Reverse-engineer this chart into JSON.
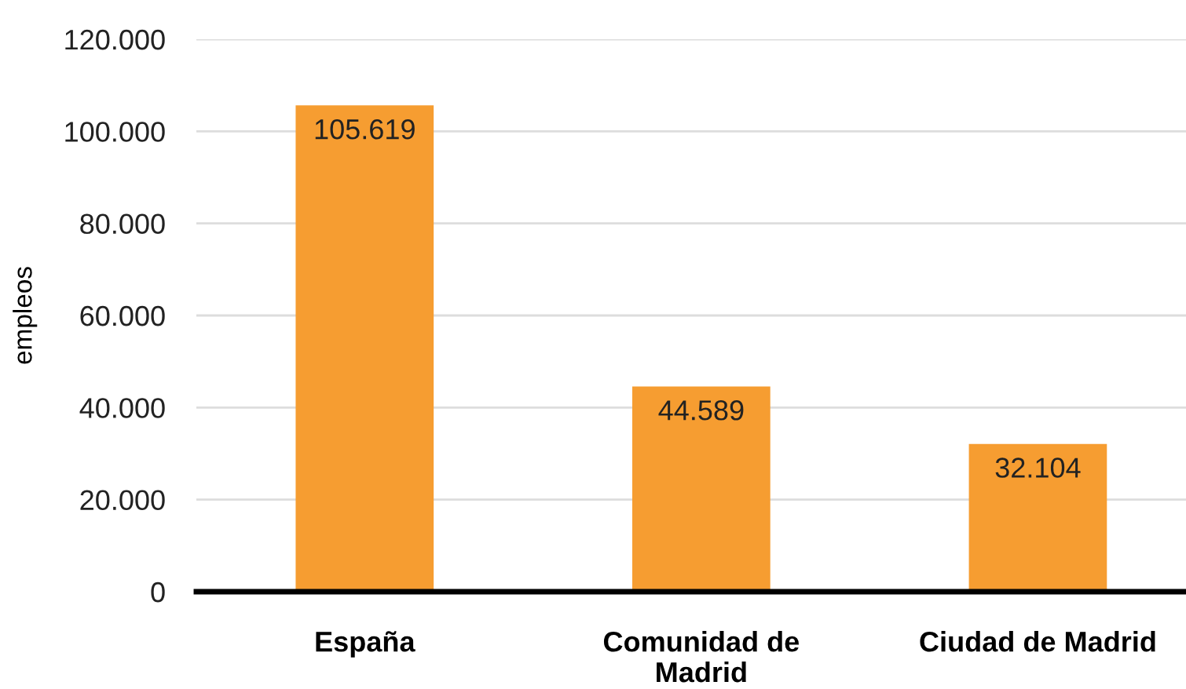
{
  "chart_data": {
    "type": "bar",
    "ylabel": "empleos",
    "categories": [
      "España",
      "Comunidad de Madrid",
      "Ciudad de Madrid"
    ],
    "values": [
      105619,
      44589,
      32104
    ],
    "value_labels": [
      "105.619",
      "44.589",
      "32.104"
    ],
    "color": "#f69d31",
    "ylim": [
      0,
      120000
    ],
    "yticks": [
      0,
      {
        "value": 20000,
        "label": "20.000"
      },
      {
        "value": 40000,
        "label": "40.000"
      },
      {
        "value": 60000,
        "label": "60.000"
      },
      {
        "value": 80000,
        "label": "80.000"
      },
      {
        "value": 100000,
        "label": "100.000"
      },
      {
        "value": 120000,
        "label": "120.000"
      }
    ],
    "grid": "y"
  }
}
